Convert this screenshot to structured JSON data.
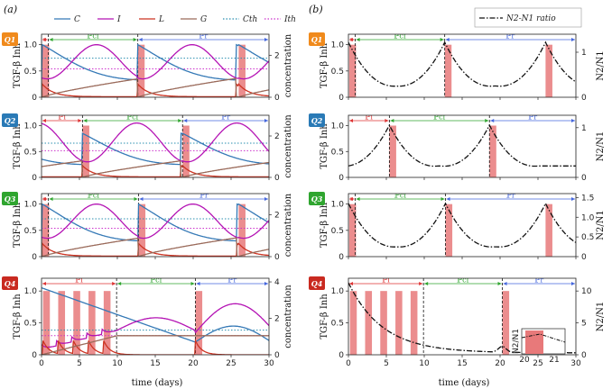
{
  "panels": {
    "a": "(a)",
    "b": "(b)"
  },
  "axes": {
    "left_ylabel": "TGF-β Inh",
    "mid_ylabel": "concentration",
    "right_ylabel": "N2/N1",
    "xlabel": "time (days)",
    "xticks": [
      "0",
      "5",
      "10",
      "15",
      "20",
      "25",
      "30"
    ]
  },
  "legend_a": [
    {
      "label": "C",
      "color": "#3579b6",
      "style": "solid"
    },
    {
      "label": "I",
      "color": "#b413b4",
      "style": "solid"
    },
    {
      "label": "L",
      "color": "#cc3322",
      "style": "solid"
    },
    {
      "label": "G",
      "color": "#9a6a5a",
      "style": "solid"
    },
    {
      "label": "Cth",
      "color": "#2a8fb0",
      "style": "dotted"
    },
    {
      "label": "Ith",
      "color": "#cc33cc",
      "style": "dotted"
    }
  ],
  "legend_b": {
    "label": "N2-N1 ratio",
    "color": "#111111",
    "style": "dashdot"
  },
  "colors": {
    "bar": "#e8797a",
    "Pi": "#dd3333",
    "Pcf": "#2fa52f",
    "Pr": "#4466dd",
    "q1": "#f08a1c",
    "q2": "#2a7ab6",
    "q3": "#2fa52f",
    "q4": "#c92a20"
  },
  "period_labels": {
    "Pi": "ℙi",
    "Pcf": "ℙcf",
    "Pr": "ℙr"
  },
  "chart_data": [
    {
      "row": 1,
      "panel": "a",
      "quadrant": "Q1",
      "type": "line",
      "xlim": [
        0,
        30
      ],
      "ylim": [
        0,
        1.2
      ],
      "y2lim": [
        0,
        3
      ],
      "yticks": [
        "0",
        "0.5",
        "1.0"
      ],
      "y2ticks": [
        "0",
        "2"
      ],
      "treatments": [
        0.1,
        12.7,
        26.0
      ],
      "boundaries": [
        0.9,
        12.7
      ],
      "periods": [
        {
          "label": "Pi",
          "from": 0,
          "to": 0.9
        },
        {
          "label": "Pcf",
          "from": 0.9,
          "to": 12.7
        },
        {
          "label": "Pr",
          "from": 12.7,
          "to": 30
        }
      ],
      "Cth": 0.62,
      "Ith": 0.45,
      "C": {
        "type": "C",
        "min": 0.33,
        "max": 1.0
      },
      "I": {
        "type": "I",
        "min": 0.35,
        "max": 1.0
      },
      "L": 0.2,
      "G": 0.36
    },
    {
      "row": 1,
      "panel": "b",
      "quadrant": "Q1",
      "type": "line",
      "xlim": [
        0,
        30
      ],
      "ylim": [
        0,
        1.2
      ],
      "y2lim": [
        0,
        1.4
      ],
      "yticks": [
        "0",
        "0.5",
        "1.0"
      ],
      "y2ticks": [
        "0",
        "1"
      ],
      "treatments": [
        0.1,
        12.7,
        26.0
      ],
      "boundaries": [
        0.9,
        12.7
      ],
      "periods": [
        {
          "label": "Pi",
          "from": 0,
          "to": 0.9
        },
        {
          "label": "Pcf",
          "from": 0.9,
          "to": 12.7
        },
        {
          "label": "Pr",
          "from": 12.7,
          "to": 30
        }
      ],
      "ratio": {
        "peaks": [
          0,
          12.7,
          26
        ],
        "peak": 1.22,
        "min": 0.2
      }
    },
    {
      "row": 2,
      "panel": "a",
      "quadrant": "Q2",
      "type": "line",
      "xlim": [
        0,
        30
      ],
      "ylim": [
        0,
        1.2
      ],
      "y2lim": [
        0,
        3
      ],
      "yticks": [
        "0",
        "0.5",
        "1.0"
      ],
      "y2ticks": [
        "0",
        "2"
      ],
      "treatments": [
        5.4,
        18.6
      ],
      "boundaries": [
        5.4,
        18.6
      ],
      "periods": [
        {
          "label": "Pi",
          "from": 0,
          "to": 5.4
        },
        {
          "label": "Pcf",
          "from": 5.4,
          "to": 18.6
        },
        {
          "label": "Pr",
          "from": 18.6,
          "to": 30
        }
      ],
      "Cth": 0.55,
      "Ith": 0.43,
      "C": {
        "type": "C",
        "min": 0.25,
        "max": 0.85
      },
      "I": {
        "type": "I",
        "min": 0.3,
        "max": 1.05
      },
      "L": 0.18,
      "G": 0.32
    },
    {
      "row": 2,
      "panel": "b",
      "quadrant": "Q2",
      "type": "line",
      "xlim": [
        0,
        30
      ],
      "ylim": [
        0,
        1.2
      ],
      "y2lim": [
        0,
        1.25
      ],
      "yticks": [
        "0",
        "0.5",
        "1.0"
      ],
      "y2ticks": [
        "0",
        "1"
      ],
      "treatments": [
        5.4,
        18.6
      ],
      "boundaries": [
        5.4,
        18.6
      ],
      "periods": [
        {
          "label": "Pi",
          "from": 0,
          "to": 5.4
        },
        {
          "label": "Pcf",
          "from": 5.4,
          "to": 18.6
        },
        {
          "label": "Pr",
          "from": 18.6,
          "to": 30
        }
      ],
      "ratio": {
        "peaks": [
          5.4,
          18.6
        ],
        "peak": 1.05,
        "min": 0.18
      }
    },
    {
      "row": 3,
      "panel": "a",
      "quadrant": "Q3",
      "type": "line",
      "xlim": [
        0,
        30
      ],
      "ylim": [
        0,
        1.2
      ],
      "y2lim": [
        0,
        3
      ],
      "yticks": [
        "0",
        "0.5",
        "1.0"
      ],
      "y2ticks": [
        "0",
        "2"
      ],
      "treatments": [
        0.1,
        12.8,
        26.0
      ],
      "boundaries": [
        0.9,
        12.8
      ],
      "periods": [
        {
          "label": "Pi",
          "from": 0,
          "to": 0.9
        },
        {
          "label": "Pcf",
          "from": 0.9,
          "to": 12.8
        },
        {
          "label": "Pr",
          "from": 12.8,
          "to": 30
        }
      ],
      "Cth": 0.6,
      "Ith": 0.45,
      "C": {
        "type": "C",
        "min": 0.3,
        "max": 1.0
      },
      "I": {
        "type": "I",
        "min": 0.35,
        "max": 1.0
      },
      "L": 0.2,
      "G": 0.36
    },
    {
      "row": 3,
      "panel": "b",
      "quadrant": "Q3",
      "type": "line",
      "xlim": [
        0,
        30
      ],
      "ylim": [
        0,
        1.2
      ],
      "y2lim": [
        0,
        1.6
      ],
      "yticks": [
        "0",
        "0.5",
        "1.0"
      ],
      "y2ticks": [
        "0",
        "0.5",
        "1.0",
        "1.5"
      ],
      "treatments": [
        0.1,
        12.8,
        26.0
      ],
      "boundaries": [
        0.9,
        12.8
      ],
      "periods": [
        {
          "label": "Pi",
          "from": 0,
          "to": 0.9
        },
        {
          "label": "Pcf",
          "from": 0.9,
          "to": 12.8
        },
        {
          "label": "Pr",
          "from": 12.8,
          "to": 30
        }
      ],
      "ratio": {
        "peaks": [
          0,
          12.8,
          26
        ],
        "peak": 1.35,
        "min": 0.2
      }
    },
    {
      "row": 4,
      "panel": "a",
      "quadrant": "Q4",
      "type": "line",
      "xlim": [
        0,
        30
      ],
      "ylim": [
        0,
        1.2
      ],
      "y2lim": [
        0,
        4.2
      ],
      "yticks": [
        "0",
        "0.5",
        "1.0"
      ],
      "y2ticks": [
        "0",
        "2",
        "4"
      ],
      "treatments": [
        0.2,
        2.2,
        4.2,
        6.2,
        8.2,
        20.3
      ],
      "boundaries": [
        9.9,
        20.3
      ],
      "periods": [
        {
          "label": "Pi",
          "from": 0,
          "to": 9.9
        },
        {
          "label": "Pcf",
          "from": 9.9,
          "to": 20.3
        },
        {
          "label": "Pr",
          "from": 20.3,
          "to": 30
        }
      ],
      "Cth": 0.45,
      "Ith": 0.35,
      "C": {
        "type": "C4",
        "min": 0.15,
        "max": 1.05
      },
      "I": {
        "type": "I4",
        "min": 0.1,
        "max": 0.8
      },
      "L": 0.2,
      "G": 0.3
    },
    {
      "row": 4,
      "panel": "b",
      "quadrant": "Q4",
      "type": "line",
      "xlim": [
        0,
        30
      ],
      "ylim": [
        0,
        1.2
      ],
      "y2lim": [
        0,
        12
      ],
      "yticks": [
        "0",
        "0.5",
        "1.0"
      ],
      "y2ticks": [
        "0",
        "5",
        "10"
      ],
      "treatments": [
        0.2,
        2.2,
        4.2,
        6.2,
        8.2,
        20.3
      ],
      "boundaries": [
        9.9,
        20.3
      ],
      "periods": [
        {
          "label": "Pi",
          "from": 0,
          "to": 9.9
        },
        {
          "label": "Pcf",
          "from": 9.9,
          "to": 20.3
        },
        {
          "label": "Pr",
          "from": 20.3,
          "to": 30
        }
      ],
      "ratio": {
        "decay": true,
        "start": 11,
        "floor": 0.3
      },
      "inset": {
        "ylabel": "N2/N1",
        "xticks": [
          "20",
          "21"
        ]
      }
    }
  ]
}
